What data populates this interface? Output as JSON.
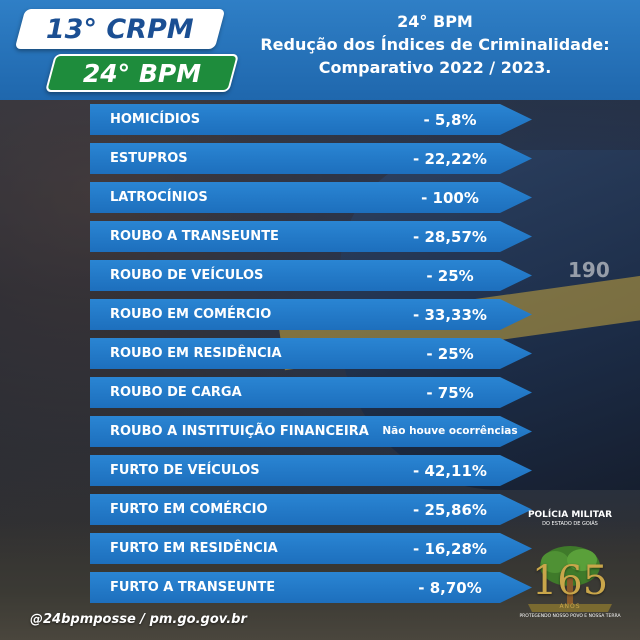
{
  "header": {
    "region_badge": "13° CRPM",
    "battalion_badge": "24° BPM",
    "title_lines": [
      "24° BPM",
      "Redução dos Índices de Criminalidade:",
      "Comparativo 2022 / 2023."
    ]
  },
  "rows": [
    {
      "label": "HOMICÍDIOS",
      "value": "- 5,8%"
    },
    {
      "label": "ESTUPROS",
      "value": "- 22,22%"
    },
    {
      "label": "LATROCÍNIOS",
      "value": "- 100%"
    },
    {
      "label": "ROUBO A TRANSEUNTE",
      "value": "- 28,57%"
    },
    {
      "label": "ROUBO DE VEÍCULOS",
      "value": "- 25%"
    },
    {
      "label": "ROUBO EM COMÉRCIO",
      "value": "- 33,33%"
    },
    {
      "label": "ROUBO EM RESIDÊNCIA",
      "value": "- 25%"
    },
    {
      "label": "ROUBO DE CARGA",
      "value": "- 75%"
    },
    {
      "label": "ROUBO A INSTITUIÇÃO FINANCEIRA",
      "value": "Não houve ocorrências"
    },
    {
      "label": "FURTO DE VEÍCULOS",
      "value": "- 42,11%"
    },
    {
      "label": "FURTO EM COMÉRCIO",
      "value": "- 25,86%"
    },
    {
      "label": "FURTO EM RESIDÊNCIA",
      "value": "- 16,28%"
    },
    {
      "label": "FURTO A TRANSEUNTE",
      "value": "- 8,70%"
    }
  ],
  "footer": {
    "text": "@24bpmposse / pm.go.gov.br"
  },
  "logo": {
    "line1": "POLÍCIA MILITAR",
    "line2": "DO ESTADO DE GOIÁS",
    "number": "165",
    "anos": "ANOS",
    "motto": "PROTEGENDO NOSSO POVO E NOSSA TERRA"
  },
  "background": {
    "vehicle_number": "190"
  },
  "colors": {
    "row_blue": "#1d6fbd",
    "header_blue": "#1f67ad",
    "badge_green": "#1e8c3c",
    "badge_text_blue": "#1b4f93",
    "logo_gold": "#c9a64a"
  }
}
